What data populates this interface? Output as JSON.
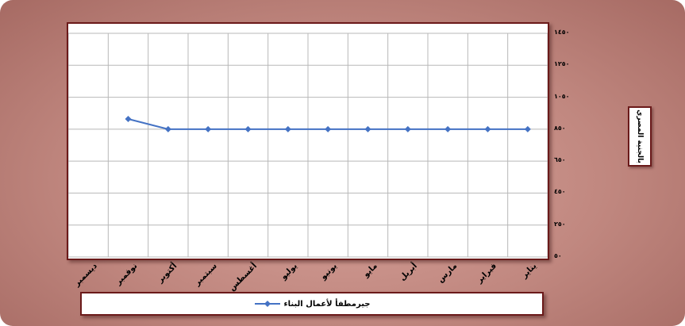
{
  "chart_data": {
    "type": "line",
    "title": "",
    "categories": [
      "ديسمبر",
      "نوفمبر",
      "أكتوبر",
      "سبتمبر",
      "أغسطس",
      "يوليو",
      "يونيو",
      "مايو",
      "أبريل",
      "مارس",
      "فبراير",
      "يناير"
    ],
    "y_tick_labels": [
      "٥٠",
      "٢٥٠",
      "٤٥٠",
      "٦٥٠",
      "٨٥٠",
      "١٠٥٠",
      "١٢٥٠",
      "١٤٥٠"
    ],
    "ylim": [
      50,
      1450
    ],
    "y_axis_position": "right",
    "ylabel": "بالجنية المصري",
    "xlabel": "",
    "grid": true,
    "legend_position": "bottom",
    "series": [
      {
        "name": "جيرمطفأ لأعمال البناء",
        "color": "#4472c4",
        "values": [
          null,
          914,
          850,
          850,
          850,
          850,
          850,
          850,
          850,
          850,
          850,
          850
        ]
      }
    ]
  }
}
